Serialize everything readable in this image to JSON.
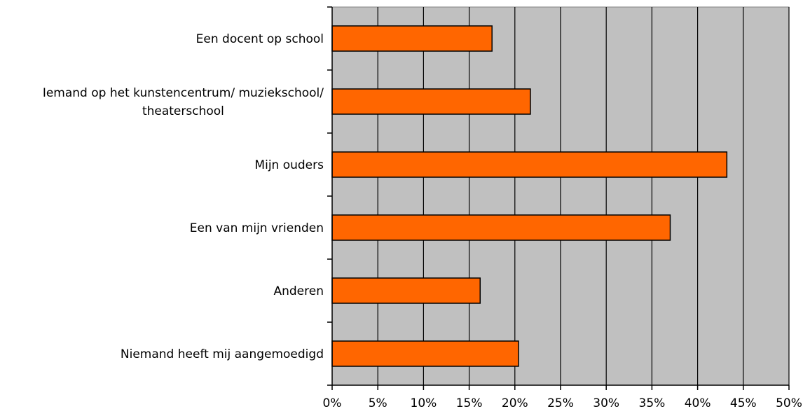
{
  "chart_data": {
    "type": "bar",
    "orientation": "horizontal",
    "categories": [
      [
        "Een docent op school"
      ],
      [
        "Iemand op het kunstencentrum/ muziekschool/",
        "theaterschool"
      ],
      [
        "Mijn ouders"
      ],
      [
        "Een van mijn vrienden"
      ],
      [
        "Anderen"
      ],
      [
        "Niemand heeft mij aangemoedigd"
      ]
    ],
    "values": [
      17.5,
      21.7,
      43.2,
      37.0,
      16.2,
      20.4
    ],
    "x_ticks": [
      "0%",
      "5%",
      "10%",
      "15%",
      "20%",
      "25%",
      "30%",
      "35%",
      "40%",
      "45%",
      "50%"
    ],
    "xlim": [
      0,
      50
    ],
    "grid": true,
    "plot_background": "#c0c0c0",
    "bar_color": "#ff6600",
    "bar_border": "#000000",
    "title": "",
    "xlabel": "",
    "ylabel": ""
  }
}
